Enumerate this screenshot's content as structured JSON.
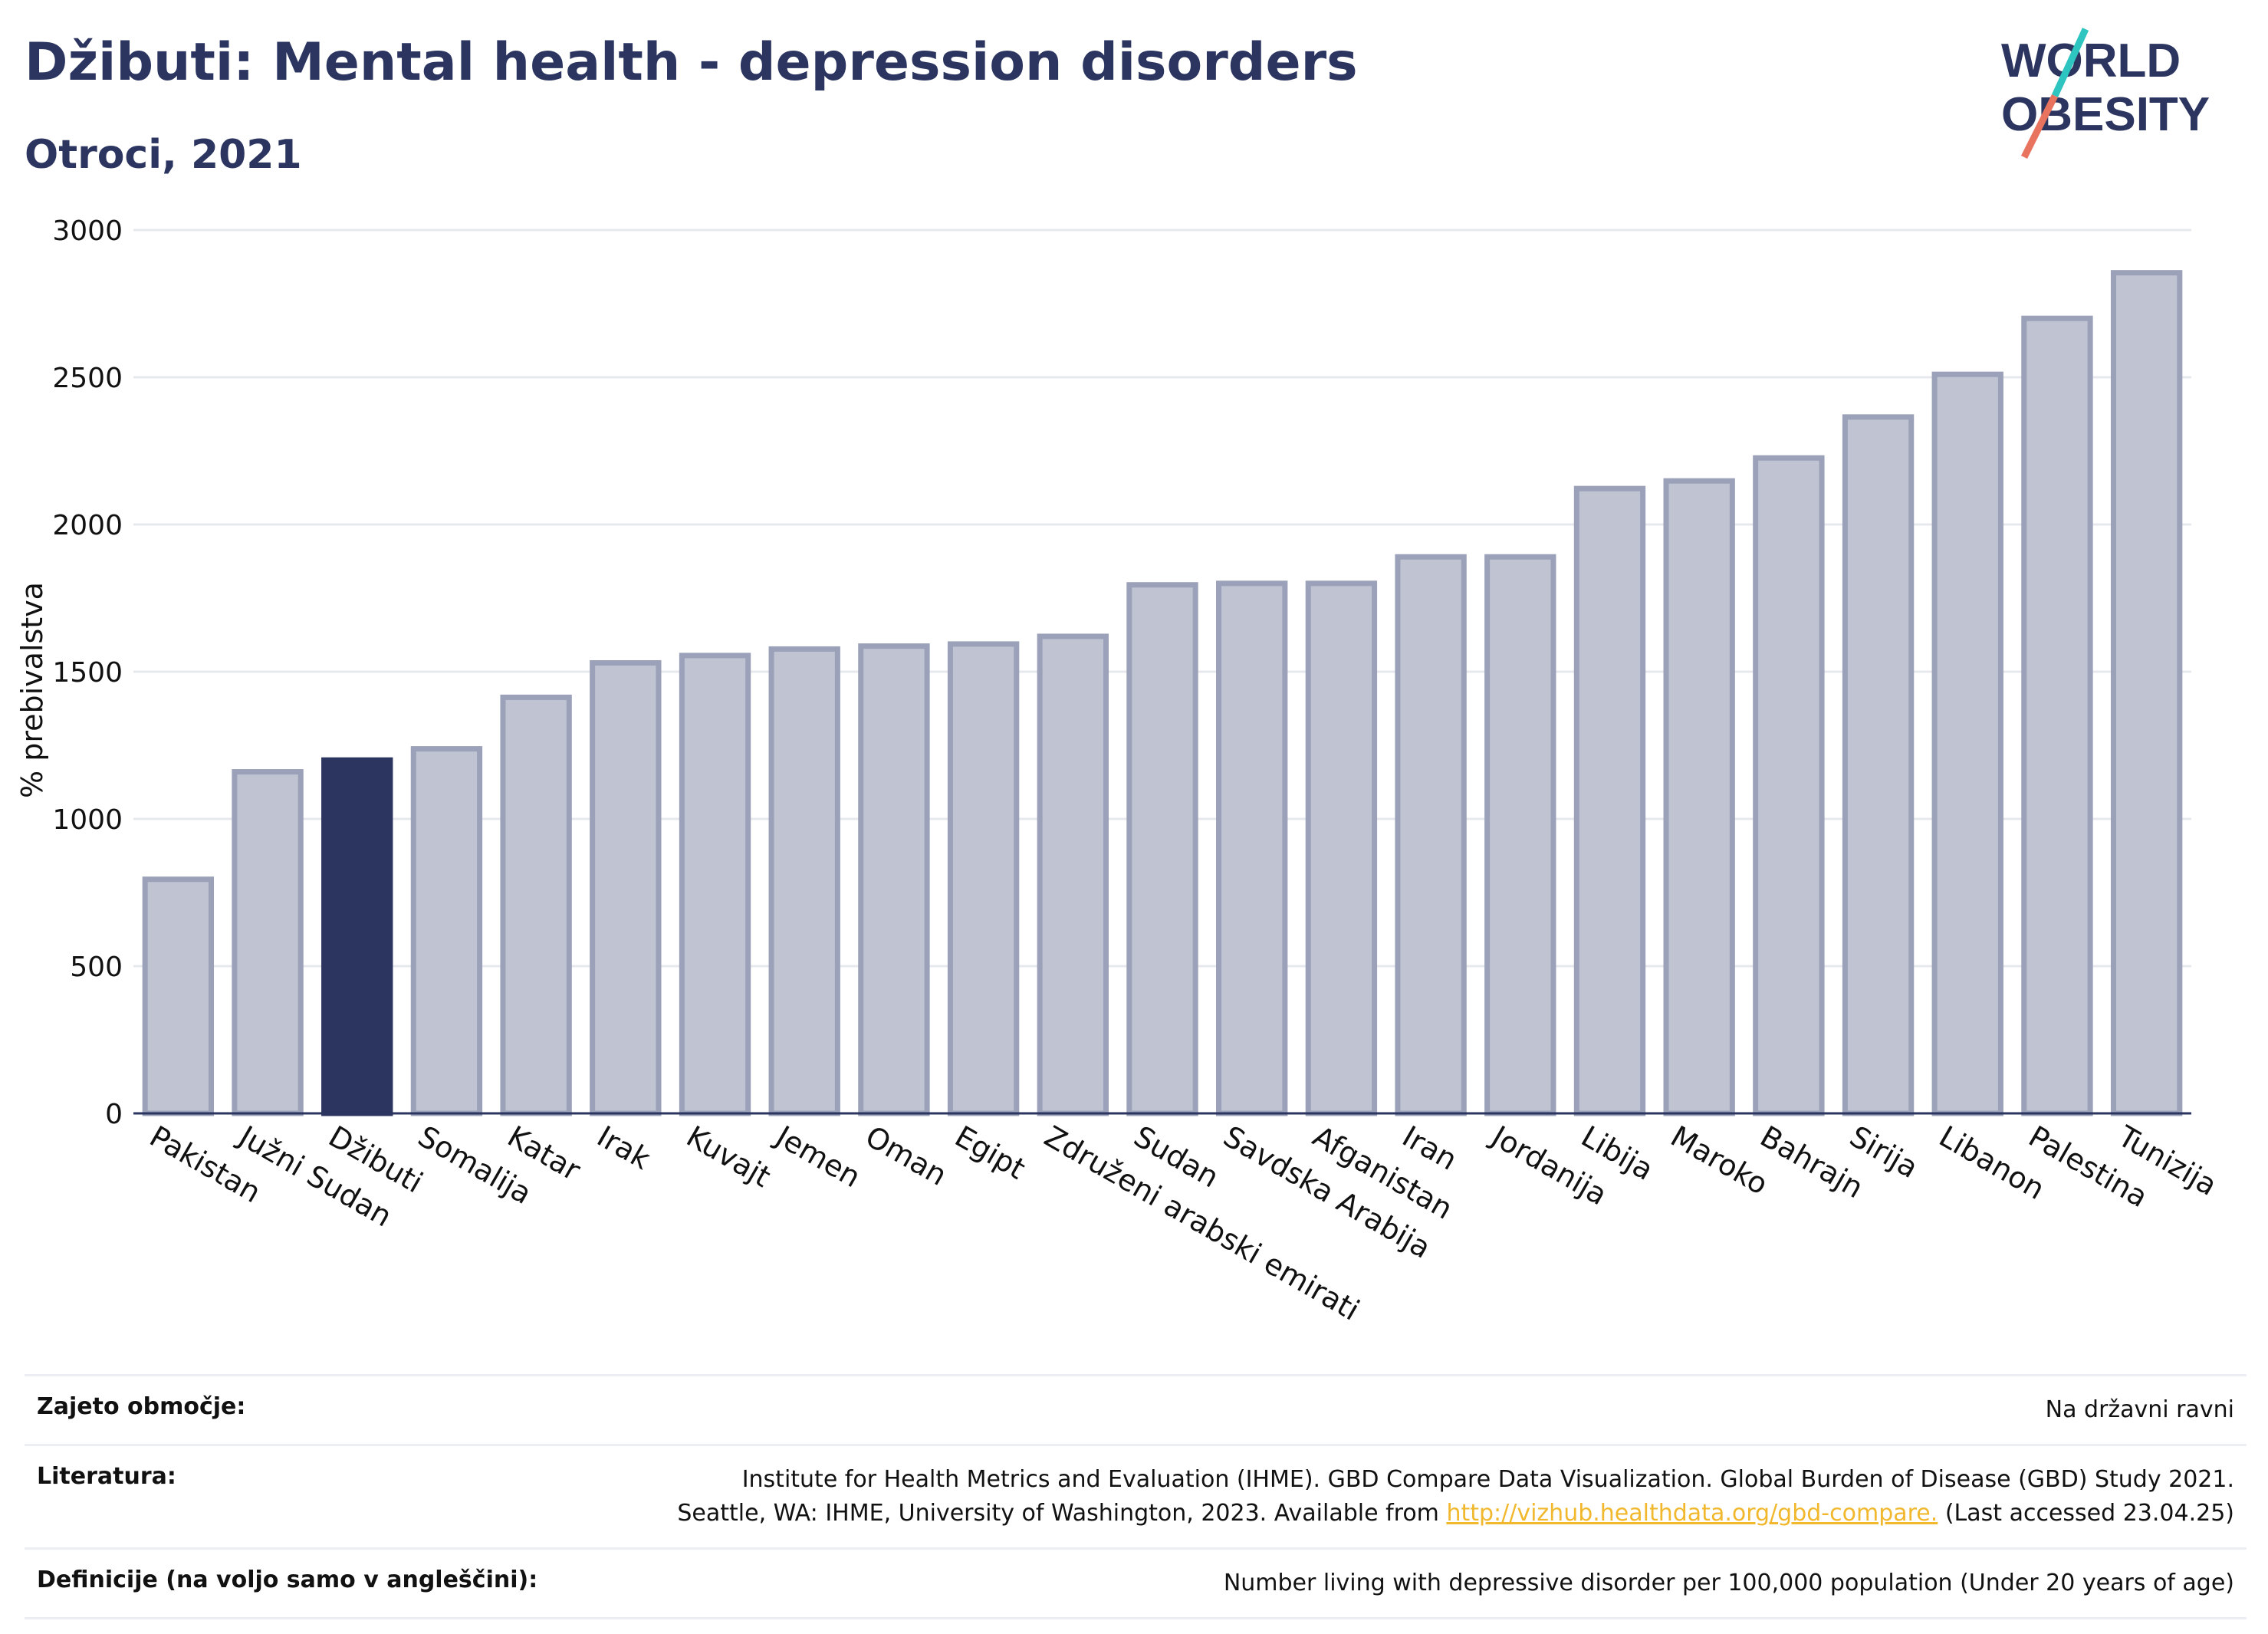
{
  "header": {
    "title": "Džibuti: Mental health - depression disorders",
    "subtitle": "Otroci, 2021"
  },
  "logo": {
    "line1": "WORLD",
    "line2": "OBESITY",
    "accent_colors": [
      "#2ec4c0",
      "#e8735f"
    ]
  },
  "colors": {
    "highlight": "#2b3560",
    "bar_fill": "#bfc3d2",
    "bar_stroke": "#9aa1b8",
    "axis": "#2b3560"
  },
  "chart_data": {
    "type": "bar",
    "ylabel": "% prebivalstva",
    "ylim": [
      0,
      3000
    ],
    "yticks": [
      0,
      500,
      1000,
      1500,
      2000,
      2500,
      3000
    ],
    "grid": true,
    "highlight": "Džibuti",
    "categories": [
      "Pakistan",
      "Južni Sudan",
      "Džibuti",
      "Somalija",
      "Katar",
      "Irak",
      "Kuvajt",
      "Jemen",
      "Oman",
      "Egipt",
      "Združeni arabski emirati",
      "Sudan",
      "Savdska Arabija",
      "Afganistan",
      "Iran",
      "Jordanija",
      "Libija",
      "Maroko",
      "Bahrajn",
      "Sirija",
      "Libanon",
      "Palestina",
      "Tunizija"
    ],
    "values": [
      795,
      1160,
      1200,
      1238,
      1413,
      1530,
      1555,
      1577,
      1587,
      1594,
      1620,
      1795,
      1800,
      1800,
      1890,
      1890,
      2122,
      2148,
      2226,
      2365,
      2510,
      2700,
      2855
    ]
  },
  "footer": {
    "rows": [
      {
        "label": "Zajeto območje:",
        "value_lines": [
          "Na državni ravni"
        ]
      },
      {
        "label": "Literatura:",
        "value_lines": [
          "Institute for Health Metrics and Evaluation (IHME). GBD Compare Data Visualization. Global Burden of Disease (GBD) Study 2021.",
          "Seattle, WA: IHME, University of Washington, 2023. Available from "
        ],
        "link": "http://vizhub.healthdata.org/gbd-compare.",
        "after_link": " (Last accessed 23.04.25)"
      },
      {
        "label": "Definicije (na voljo samo v angleščini):",
        "value_lines": [
          "Number living with depressive disorder per 100,000 population (Under 20 years of age)"
        ]
      }
    ]
  }
}
